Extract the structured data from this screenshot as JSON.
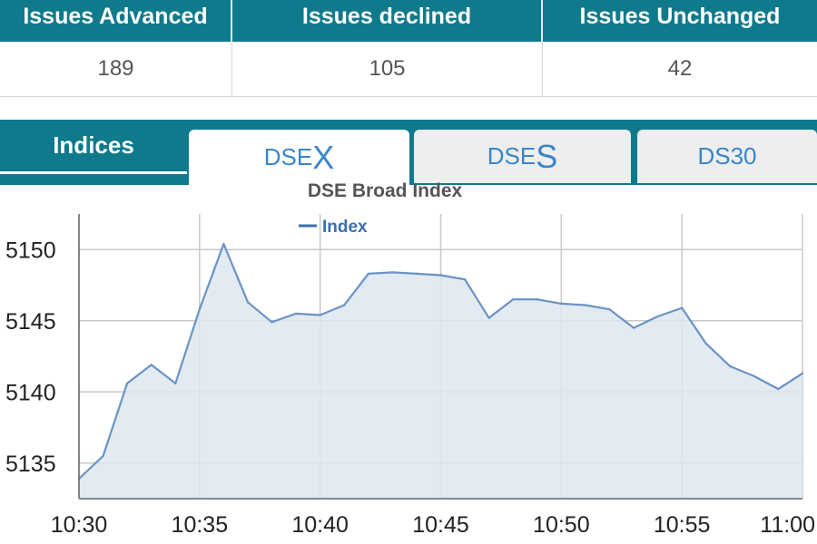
{
  "summary": {
    "headers": [
      "Issues Advanced",
      "Issues declined",
      "Issues Unchanged"
    ],
    "values": [
      "189",
      "105",
      "42"
    ]
  },
  "tabs": {
    "indices_label": "Indices",
    "dsex_prefix": "DSE",
    "dsex_suffix": "X",
    "dses_prefix": "DSE",
    "dses_suffix": "S",
    "ds30_label": "DS30",
    "active": "DSEX"
  },
  "colors": {
    "header_bg": "#0f7a8c",
    "tab_text": "#3a86c8",
    "line": "#6a93c4",
    "area": "#dde6f0"
  },
  "chart_data": {
    "type": "area",
    "title": "DSE Broad Index",
    "legend": {
      "position": "top",
      "entries": [
        "Index"
      ]
    },
    "xlabel": "",
    "ylabel": "",
    "xlim": [
      "10:30",
      "11:00"
    ],
    "ylim": [
      5132.5,
      5152.5
    ],
    "x_ticks": [
      "10:30",
      "10:35",
      "10:40",
      "10:45",
      "10:50",
      "10:55",
      "11:00"
    ],
    "y_ticks": [
      5135,
      5140,
      5145,
      5150
    ],
    "grid": true,
    "series": [
      {
        "name": "Index",
        "x": [
          "10:30",
          "10:31",
          "10:32",
          "10:33",
          "10:34",
          "10:35",
          "10:36",
          "10:37",
          "10:38",
          "10:39",
          "10:40",
          "10:41",
          "10:42",
          "10:43",
          "10:44",
          "10:45",
          "10:46",
          "10:47",
          "10:48",
          "10:49",
          "10:50",
          "10:51",
          "10:52",
          "10:53",
          "10:54",
          "10:55",
          "10:56",
          "10:57",
          "10:58",
          "10:59",
          "11:00"
        ],
        "values": [
          5133.9,
          5135.5,
          5140.6,
          5141.9,
          5140.6,
          5145.8,
          5150.4,
          5146.3,
          5144.9,
          5145.5,
          5145.4,
          5146.1,
          5148.3,
          5148.4,
          5148.3,
          5148.2,
          5147.9,
          5145.2,
          5146.5,
          5146.5,
          5146.2,
          5146.1,
          5145.8,
          5144.5,
          5145.3,
          5145.9,
          5143.4,
          5141.8,
          5141.1,
          5140.2,
          5141.3
        ]
      }
    ]
  }
}
